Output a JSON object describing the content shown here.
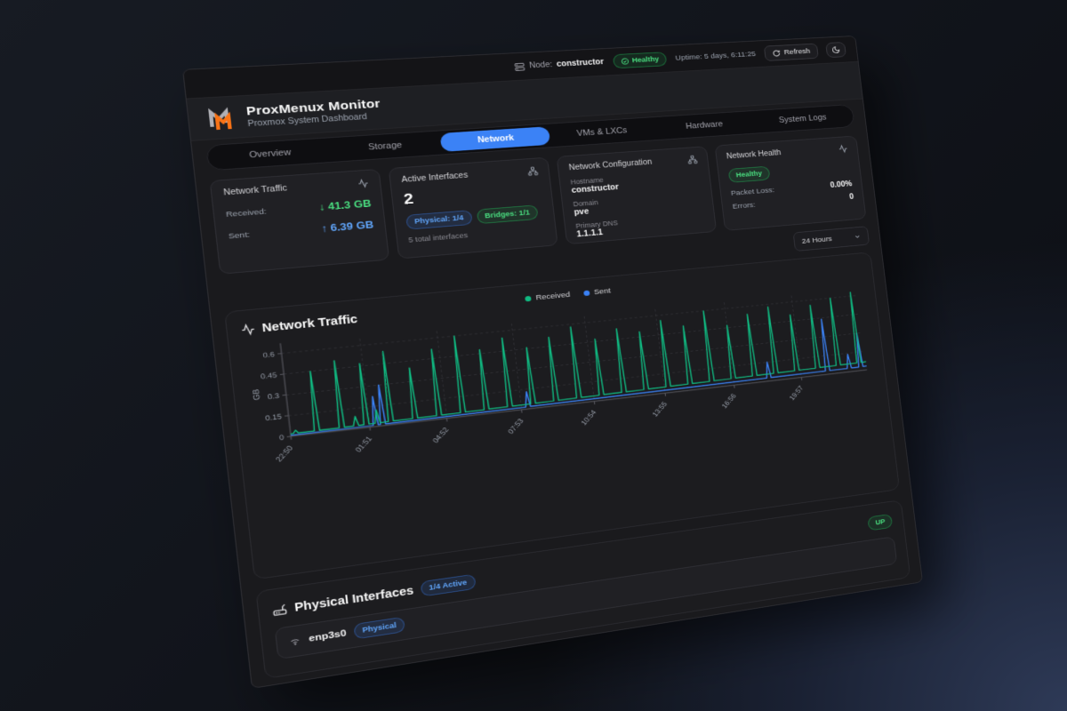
{
  "topbar": {
    "node_label": "Node:",
    "node_value": "constructor",
    "health_badge": "Healthy",
    "uptime": "Uptime: 5 days, 6:11:25",
    "refresh_label": "Refresh"
  },
  "header": {
    "title": "ProxMenux Monitor",
    "subtitle": "Proxmox System Dashboard"
  },
  "tabs": {
    "items": [
      "Overview",
      "Storage",
      "Network",
      "VMs & LXCs",
      "Hardware",
      "System Logs"
    ],
    "active": "Network"
  },
  "cards": {
    "traffic": {
      "title": "Network Traffic",
      "rows": [
        {
          "label": "Received:",
          "value": "↓ 41.3 GB",
          "color": "green"
        },
        {
          "label": "Sent:",
          "value": "↑ 6.39 GB",
          "color": "blue"
        }
      ]
    },
    "interfaces": {
      "title": "Active Interfaces",
      "count": "2",
      "badges": [
        {
          "label": "Physical: 1/4",
          "color": "blue"
        },
        {
          "label": "Bridges: 1/1",
          "color": "green"
        }
      ],
      "note": "5 total interfaces"
    },
    "config": {
      "title": "Network Configuration",
      "fields": [
        {
          "label": "Hostname",
          "value": "constructor"
        },
        {
          "label": "Domain",
          "value": "pve"
        },
        {
          "label": "Primary DNS",
          "value": "1.1.1.1"
        }
      ]
    },
    "health": {
      "title": "Network Health",
      "status_badge": "Healthy",
      "rows": [
        {
          "label": "Packet Loss:",
          "value": "0.00%"
        },
        {
          "label": "Errors:",
          "value": "0"
        }
      ]
    }
  },
  "toolbar": {
    "time_range": "24 Hours"
  },
  "chart_card": {
    "title": "Network Traffic"
  },
  "chart_data": {
    "type": "line",
    "title": "Network Traffic",
    "ylabel": "GB",
    "x_ticks": [
      "22:50",
      "01:51",
      "04:52",
      "07:53",
      "10:54",
      "13:55",
      "16:56",
      "19:57"
    ],
    "x_tick_minutes": [
      0,
      181,
      362,
      543,
      724,
      905,
      1086,
      1267
    ],
    "x_range_minutes": 1448,
    "y_tick_values": [
      0,
      0.15,
      0.3,
      0.45,
      0.6
    ],
    "y_tick_labels": [
      "0",
      "0.15",
      "0.3",
      "0.45",
      "0.6"
    ],
    "ylim": [
      0,
      0.65
    ],
    "grid": "dashed",
    "legend_position": "top-center",
    "legend": [
      {
        "name": "Received",
        "color": "#10b981"
      },
      {
        "name": "Sent",
        "color": "#3b82f6"
      }
    ],
    "series": [
      {
        "name": "Received",
        "color": "#10b981",
        "baseline_start": 0.018,
        "baseline_end": 0.065,
        "spikes": [
          [
            12,
            0.04
          ],
          [
            60,
            0.45
          ],
          [
            117,
            0.51
          ],
          [
            150,
            0.09
          ],
          [
            174,
            0.47
          ],
          [
            200,
            0.12
          ],
          [
            231,
            0.54
          ],
          [
            288,
            0.4
          ],
          [
            345,
            0.52
          ],
          [
            402,
            0.6
          ],
          [
            459,
            0.48
          ],
          [
            516,
            0.55
          ],
          [
            573,
            0.46
          ],
          [
            630,
            0.52
          ],
          [
            687,
            0.58
          ],
          [
            744,
            0.47
          ],
          [
            801,
            0.53
          ],
          [
            858,
            0.49
          ],
          [
            915,
            0.56
          ],
          [
            972,
            0.5
          ],
          [
            1029,
            0.6
          ],
          [
            1086,
            0.47
          ],
          [
            1143,
            0.54
          ],
          [
            1200,
            0.58
          ],
          [
            1257,
            0.5
          ],
          [
            1314,
            0.56
          ],
          [
            1371,
            0.6
          ],
          [
            1428,
            0.63
          ]
        ]
      },
      {
        "name": "Sent",
        "color": "#3b82f6",
        "baseline_start": 0.008,
        "baseline_end": 0.03,
        "spikes": [
          [
            195,
            0.22
          ],
          [
            212,
            0.3
          ],
          [
            560,
            0.13
          ],
          [
            1180,
            0.15
          ],
          [
            1340,
            0.44
          ],
          [
            1400,
            0.14
          ],
          [
            1432,
            0.3
          ]
        ]
      }
    ]
  },
  "physical": {
    "title": "Physical Interfaces",
    "active_badge": "1/4 Active",
    "status_badge": "UP",
    "rows": [
      {
        "name": "enp3s0",
        "type_badge": "Physical"
      }
    ]
  },
  "colors": {
    "accent_blue": "#3b82f6",
    "status_green": "#22c55e",
    "received_line": "#10b981",
    "sent_line": "#3b82f6",
    "value_green": "#4ade80",
    "value_blue": "#60a5fa",
    "logo_orange": "#f97316"
  }
}
